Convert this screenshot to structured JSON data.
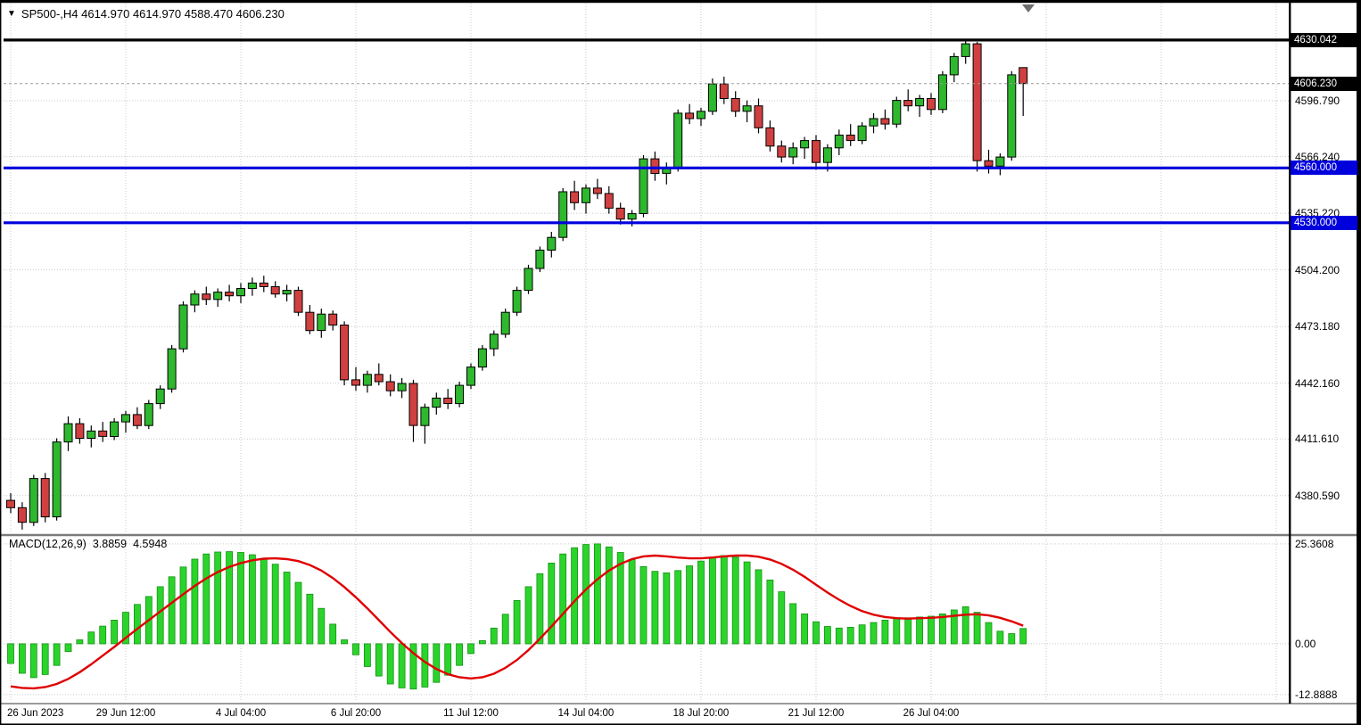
{
  "header": {
    "title_text": "SP500-,H4 4614.970 4614.970 4588.470 4606.230",
    "symbol": "SP500-",
    "timeframe": "H4",
    "open": "4614.970",
    "high": "4614.970",
    "low": "4588.470",
    "close": "4606.230"
  },
  "icons": {
    "symbol_marker": "▼"
  },
  "indicator": {
    "label": "MACD(12,26,9)",
    "macd_value": "3.8859",
    "signal_value": "4.5948"
  },
  "chart_data": {
    "type": "candlestick",
    "title": "SP500-,H4",
    "price_range": [
      4360,
      4650
    ],
    "current_price": 4606.23,
    "y_ticks": [
      "4596.790",
      "4566.240",
      "4535.220",
      "4504.200",
      "4473.180",
      "4442.160",
      "4411.610",
      "4380.590"
    ],
    "badges": [
      {
        "label": "4630.042",
        "price": 4630.042,
        "color": "#000000"
      },
      {
        "label": "4606.230",
        "price": 4606.23,
        "color": "#000000"
      },
      {
        "label": "4560.000",
        "price": 4560.0,
        "color": "#0000DD"
      },
      {
        "label": "4530.000",
        "price": 4530.0,
        "color": "#0000DD"
      }
    ],
    "hlines": [
      {
        "price": 4630.042,
        "color": "#000000"
      },
      {
        "price": 4560.0,
        "color": "#0000DD"
      },
      {
        "price": 4530.0,
        "color": "#0000DD"
      }
    ],
    "x_labels": [
      {
        "index": 0,
        "label": "26 Jun 2023"
      },
      {
        "index": 10,
        "label": "29 Jun 12:00"
      },
      {
        "index": 20,
        "label": "4 Jul 04:00"
      },
      {
        "index": 30,
        "label": "6 Jul 20:00"
      },
      {
        "index": 40,
        "label": "11 Jul 12:00"
      },
      {
        "index": 50,
        "label": "14 Jul 04:00"
      },
      {
        "index": 60,
        "label": "18 Jul 20:00"
      },
      {
        "index": 70,
        "label": "21 Jul 12:00"
      },
      {
        "index": 80,
        "label": "26 Jul 04:00"
      }
    ],
    "candles": [
      [
        4378,
        4382,
        4371,
        4374
      ],
      [
        4374,
        4377,
        4362,
        4366
      ],
      [
        4366,
        4392,
        4364,
        4390
      ],
      [
        4390,
        4393,
        4366,
        4369
      ],
      [
        4369,
        4412,
        4367,
        4410
      ],
      [
        4410,
        4424,
        4405,
        4420
      ],
      [
        4420,
        4423,
        4409,
        4412
      ],
      [
        4412,
        4419,
        4407,
        4416
      ],
      [
        4416,
        4421,
        4410,
        4413
      ],
      [
        4413,
        4423,
        4411,
        4421
      ],
      [
        4421,
        4427,
        4415,
        4425
      ],
      [
        4425,
        4429,
        4417,
        4419
      ],
      [
        4419,
        4433,
        4417,
        4431
      ],
      [
        4431,
        4441,
        4428,
        4439
      ],
      [
        4439,
        4463,
        4437,
        4461
      ],
      [
        4461,
        4487,
        4459,
        4485
      ],
      [
        4485,
        4493,
        4481,
        4491
      ],
      [
        4491,
        4495,
        4485,
        4488
      ],
      [
        4488,
        4494,
        4484,
        4492
      ],
      [
        4492,
        4496,
        4487,
        4490
      ],
      [
        4490,
        4497,
        4486,
        4494
      ],
      [
        4494,
        4500,
        4490,
        4497
      ],
      [
        4497,
        4501,
        4492,
        4495
      ],
      [
        4495,
        4498,
        4489,
        4491
      ],
      [
        4491,
        4496,
        4487,
        4493
      ],
      [
        4493,
        4495,
        4479,
        4481
      ],
      [
        4481,
        4485,
        4469,
        4471
      ],
      [
        4471,
        4483,
        4467,
        4480
      ],
      [
        4480,
        4482,
        4471,
        4474
      ],
      [
        4474,
        4476,
        4441,
        4444
      ],
      [
        4444,
        4451,
        4438,
        4441
      ],
      [
        4441,
        4449,
        4437,
        4447
      ],
      [
        4447,
        4453,
        4441,
        4443
      ],
      [
        4443,
        4447,
        4435,
        4438
      ],
      [
        4438,
        4445,
        4434,
        4442
      ],
      [
        4442,
        4444,
        4410,
        4419
      ],
      [
        4419,
        4431,
        4409,
        4429
      ],
      [
        4429,
        4437,
        4425,
        4434
      ],
      [
        4434,
        4439,
        4428,
        4431
      ],
      [
        4431,
        4443,
        4429,
        4441
      ],
      [
        4441,
        4453,
        4439,
        4451
      ],
      [
        4451,
        4463,
        4449,
        4461
      ],
      [
        4461,
        4471,
        4457,
        4469
      ],
      [
        4469,
        4483,
        4467,
        4481
      ],
      [
        4481,
        4495,
        4479,
        4493
      ],
      [
        4493,
        4507,
        4491,
        4505
      ],
      [
        4505,
        4517,
        4503,
        4515
      ],
      [
        4515,
        4525,
        4511,
        4522
      ],
      [
        4522,
        4549,
        4520,
        4547
      ],
      [
        4547,
        4553,
        4537,
        4541
      ],
      [
        4541,
        4551,
        4535,
        4549
      ],
      [
        4549,
        4554,
        4543,
        4546
      ],
      [
        4546,
        4550,
        4535,
        4538
      ],
      [
        4538,
        4541,
        4529,
        4532
      ],
      [
        4532,
        4537,
        4528,
        4535
      ],
      [
        4535,
        4567,
        4533,
        4565
      ],
      [
        4565,
        4569,
        4553,
        4557
      ],
      [
        4557,
        4563,
        4551,
        4560
      ],
      [
        4560,
        4592,
        4558,
        4590
      ],
      [
        4590,
        4595,
        4584,
        4587
      ],
      [
        4587,
        4593,
        4583,
        4591
      ],
      [
        4591,
        4609,
        4589,
        4606
      ],
      [
        4606,
        4610,
        4595,
        4598
      ],
      [
        4598,
        4602,
        4588,
        4591
      ],
      [
        4591,
        4597,
        4585,
        4594
      ],
      [
        4594,
        4598,
        4579,
        4582
      ],
      [
        4582,
        4586,
        4569,
        4572
      ],
      [
        4572,
        4575,
        4563,
        4566
      ],
      [
        4566,
        4574,
        4562,
        4571
      ],
      [
        4571,
        4577,
        4565,
        4575
      ],
      [
        4575,
        4578,
        4559,
        4563
      ],
      [
        4563,
        4573,
        4558,
        4571
      ],
      [
        4571,
        4581,
        4567,
        4578
      ],
      [
        4578,
        4584,
        4572,
        4575
      ],
      [
        4575,
        4585,
        4573,
        4583
      ],
      [
        4583,
        4590,
        4579,
        4587
      ],
      [
        4587,
        4592,
        4581,
        4584
      ],
      [
        4584,
        4599,
        4582,
        4597
      ],
      [
        4597,
        4603,
        4591,
        4594
      ],
      [
        4594,
        4600,
        4588,
        4598
      ],
      [
        4598,
        4601,
        4589,
        4592
      ],
      [
        4592,
        4613,
        4590,
        4611
      ],
      [
        4611,
        4623,
        4607,
        4621
      ],
      [
        4621,
        4630.04,
        4617,
        4628
      ],
      [
        4628,
        4629,
        4558,
        4564
      ],
      [
        4564,
        4570,
        4557,
        4561
      ],
      [
        4561,
        4568,
        4556,
        4566
      ],
      [
        4566,
        4613,
        4564,
        4611
      ],
      [
        4614.97,
        4614.97,
        4588.47,
        4606.23
      ]
    ],
    "macd": {
      "label": "MACD(12,26,9)",
      "current_macd": 3.8859,
      "current_signal": 4.5948,
      "range": [
        -14.5,
        26.7
      ],
      "y_ticks": [
        {
          "label": "25.3608",
          "value": 25.3608
        },
        {
          "label": "0.00",
          "value": 0
        },
        {
          "label": "-12.8888",
          "value": -12.8888
        }
      ],
      "histogram": [
        -5.0,
        -7.5,
        -8.6,
        -7.8,
        -5.5,
        -2.0,
        1.0,
        3.0,
        4.5,
        6.0,
        8.0,
        10.0,
        12.0,
        14.5,
        17.0,
        19.5,
        21.5,
        22.8,
        23.3,
        23.4,
        23.2,
        22.6,
        21.6,
        20.2,
        18.2,
        15.6,
        12.6,
        9.0,
        5.0,
        1.0,
        -2.8,
        -5.8,
        -8.2,
        -10.2,
        -11.2,
        -11.5,
        -11.0,
        -9.8,
        -8.0,
        -5.5,
        -2.5,
        0.8,
        4.0,
        7.5,
        11.0,
        14.5,
        17.8,
        20.5,
        22.8,
        24.4,
        25.2,
        25.36,
        24.6,
        23.2,
        21.4,
        19.6,
        18.4,
        18.0,
        18.6,
        19.8,
        21.0,
        22.0,
        22.4,
        22.0,
        20.8,
        18.8,
        16.2,
        13.2,
        10.2,
        7.6,
        5.6,
        4.4,
        4.0,
        4.2,
        4.8,
        5.4,
        6.0,
        6.4,
        6.6,
        6.8,
        7.0,
        7.6,
        8.6,
        9.4,
        8.0,
        5.4,
        3.2,
        2.6,
        3.8859
      ],
      "signal": [
        -10.8,
        -11.2,
        -11.3,
        -11.0,
        -10.2,
        -8.9,
        -7.2,
        -5.2,
        -3.0,
        -0.8,
        1.5,
        3.8,
        6.0,
        8.2,
        10.4,
        12.6,
        14.7,
        16.6,
        18.2,
        19.5,
        20.5,
        21.2,
        21.6,
        21.7,
        21.5,
        21.0,
        20.0,
        18.6,
        16.7,
        14.4,
        11.8,
        9.0,
        6.0,
        3.0,
        0.2,
        -2.4,
        -4.6,
        -6.4,
        -7.7,
        -8.5,
        -8.8,
        -8.5,
        -7.6,
        -6.1,
        -4.1,
        -1.6,
        1.3,
        4.4,
        7.6,
        10.8,
        13.8,
        16.4,
        18.6,
        20.3,
        21.5,
        22.2,
        22.4,
        22.2,
        21.9,
        21.7,
        21.7,
        21.9,
        22.2,
        22.4,
        22.4,
        22.1,
        21.4,
        20.3,
        18.8,
        17.0,
        15.0,
        13.0,
        11.2,
        9.6,
        8.3,
        7.4,
        6.8,
        6.5,
        6.4,
        6.5,
        6.6,
        6.8,
        7.1,
        7.4,
        7.5,
        7.2,
        6.6,
        5.7,
        4.5948
      ]
    },
    "colors": {
      "candle_up": "#2EB82E",
      "candle_down": "#D04040",
      "candle_outline": "#000000",
      "macd_bar": "#2BD42B",
      "macd_bar_stroke": "#149114",
      "macd_signal": "#E00000",
      "grid": "#C9C9C9",
      "level_blue": "#0000DD",
      "level_black": "#000000",
      "current_price_line": "#9A9A9A"
    }
  }
}
